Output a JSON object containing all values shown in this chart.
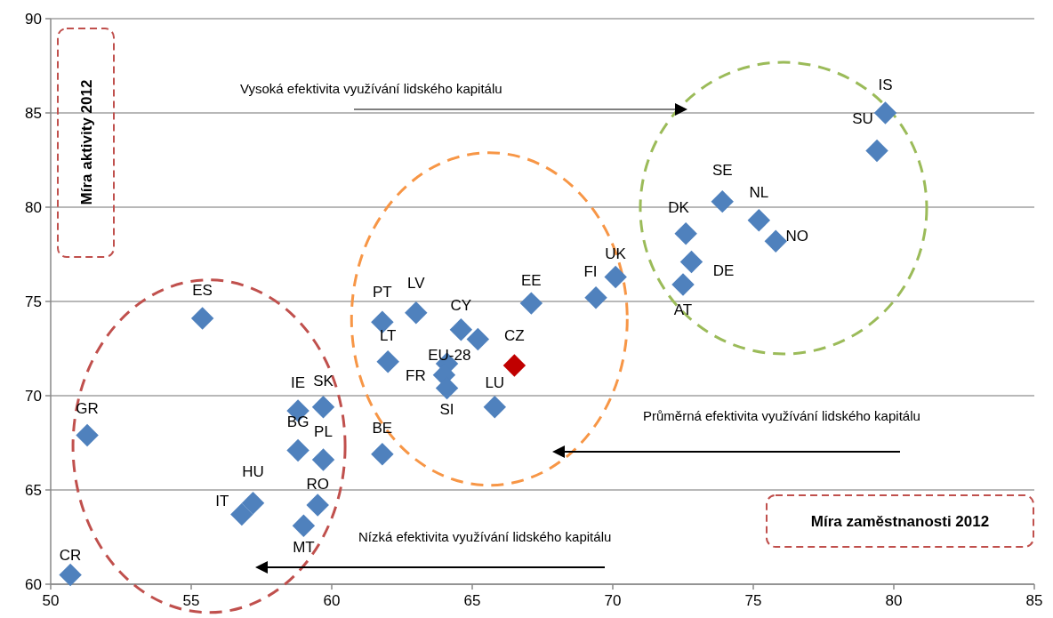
{
  "chart_data": {
    "type": "scatter",
    "xlabel": "Míra zaměstnanosti 2012",
    "ylabel": "Míra aktivity 2012",
    "xlim": [
      50,
      85
    ],
    "xticks": [
      50,
      55,
      60,
      65,
      70,
      75,
      80,
      85
    ],
    "ylim": [
      60,
      90
    ],
    "yticks": [
      60,
      65,
      70,
      75,
      80,
      85,
      90
    ],
    "grid": "y",
    "marker": "diamond",
    "series": [
      {
        "x": [
          50.7,
          51.3,
          55.4,
          56.8,
          57.2,
          58.8,
          58.8,
          59.7,
          59.7,
          59.5,
          59.0,
          61.8,
          61.8,
          62.0,
          63.0,
          64.6,
          65.2,
          64.1,
          64.0,
          64.1,
          65.8,
          66.5,
          67.1,
          69.4,
          70.1,
          72.6,
          73.9,
          75.2,
          75.8,
          72.8,
          72.5,
          79.7,
          79.4
        ],
        "values": [
          60.5,
          67.9,
          74.1,
          63.7,
          64.3,
          69.2,
          67.1,
          69.4,
          66.6,
          64.2,
          63.1,
          66.9,
          73.9,
          71.8,
          74.4,
          73.5,
          73.0,
          71.7,
          71.1,
          70.4,
          69.4,
          71.6,
          74.9,
          75.2,
          76.3,
          78.6,
          80.3,
          79.3,
          78.2,
          77.1,
          75.9,
          85.0,
          83.0
        ],
        "colors": [
          "#4f81bd",
          "#4f81bd",
          "#4f81bd",
          "#4f81bd",
          "#4f81bd",
          "#4f81bd",
          "#4f81bd",
          "#4f81bd",
          "#4f81bd",
          "#4f81bd",
          "#4f81bd",
          "#4f81bd",
          "#4f81bd",
          "#4f81bd",
          "#4f81bd",
          "#4f81bd",
          "#4f81bd",
          "#4f81bd",
          "#4f81bd",
          "#4f81bd",
          "#4f81bd",
          "#c00000",
          "#4f81bd",
          "#4f81bd",
          "#4f81bd",
          "#4f81bd",
          "#4f81bd",
          "#4f81bd",
          "#4f81bd",
          "#4f81bd",
          "#4f81bd",
          "#4f81bd",
          "#4f81bd"
        ]
      }
    ],
    "annotations": [
      {
        "text": "CR",
        "x": 50.7,
        "y": 60.5
      },
      {
        "text": "GR",
        "x": 51.3,
        "y": 67.9
      },
      {
        "text": "ES",
        "x": 55.4,
        "y": 74.1
      },
      {
        "text": "IT",
        "x": 56.8,
        "y": 63.7
      },
      {
        "text": "HU",
        "x": 57.2,
        "y": 64.3
      },
      {
        "text": "IE",
        "x": 58.8,
        "y": 69.2
      },
      {
        "text": "BG",
        "x": 58.8,
        "y": 67.1
      },
      {
        "text": "SK",
        "x": 59.7,
        "y": 69.4
      },
      {
        "text": "PL",
        "x": 59.7,
        "y": 66.6
      },
      {
        "text": "RO",
        "x": 59.5,
        "y": 64.2
      },
      {
        "text": "MT",
        "x": 59.0,
        "y": 63.1
      },
      {
        "text": "BE",
        "x": 61.8,
        "y": 66.9
      },
      {
        "text": "PT",
        "x": 61.8,
        "y": 73.9
      },
      {
        "text": "LT",
        "x": 62.0,
        "y": 71.8
      },
      {
        "text": "LV",
        "x": 63.0,
        "y": 74.4
      },
      {
        "text": "CY",
        "x": 64.6,
        "y": 73.5
      },
      {
        "text": "EU-28",
        "x": 65.2,
        "y": 73.0
      },
      {
        "text": "FR",
        "x": 64.0,
        "y": 71.1
      },
      {
        "text": "SI",
        "x": 64.1,
        "y": 70.4
      },
      {
        "text": "LU",
        "x": 65.8,
        "y": 69.4
      },
      {
        "text": "CZ",
        "x": 66.5,
        "y": 71.6
      },
      {
        "text": "EE",
        "x": 67.1,
        "y": 74.9
      },
      {
        "text": "FI",
        "x": 69.4,
        "y": 75.2
      },
      {
        "text": "UK",
        "x": 70.1,
        "y": 76.3
      },
      {
        "text": "DK",
        "x": 72.6,
        "y": 78.6
      },
      {
        "text": "SE",
        "x": 73.9,
        "y": 80.3
      },
      {
        "text": "NL",
        "x": 75.2,
        "y": 79.3
      },
      {
        "text": "NO",
        "x": 75.8,
        "y": 78.2
      },
      {
        "text": "DE",
        "x": 72.8,
        "y": 77.1
      },
      {
        "text": "AT",
        "x": 72.5,
        "y": 75.9
      },
      {
        "text": "IS",
        "x": 79.7,
        "y": 85.0
      },
      {
        "text": "SU",
        "x": 79.4,
        "y": 83.0
      },
      "Vysoká efektivita využívání lidského kapitálu",
      "Průměrná efektivita využívání lidského kapitálu",
      "Nízká efektivita využívání lidského kapitálu"
    ]
  }
}
